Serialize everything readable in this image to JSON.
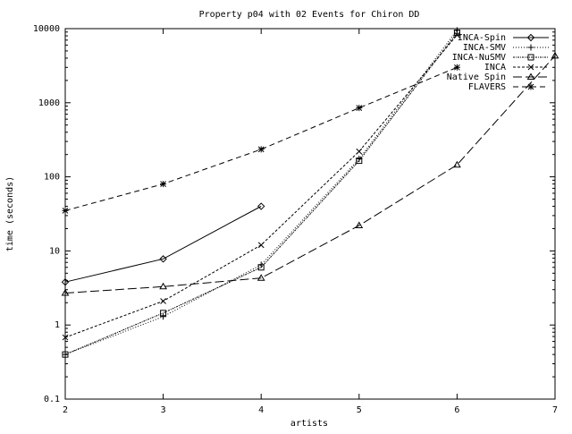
{
  "chart_data": {
    "type": "line",
    "title": "Property p04 with 02 Events for Chiron DD",
    "xlabel": "artists",
    "ylabel": "time (seconds)",
    "xlim": [
      2,
      7
    ],
    "ylim": [
      0.1,
      10000
    ],
    "yscale": "log",
    "x_ticks": [
      2,
      3,
      4,
      5,
      6,
      7
    ],
    "x_tick_labels": [
      "2",
      "3",
      "4",
      "5",
      "6",
      "7"
    ],
    "y_ticks": [
      0.1,
      1,
      10,
      100,
      1000,
      10000
    ],
    "y_tick_labels": [
      "0.1",
      "1",
      "10",
      "100",
      "1000",
      "10000"
    ],
    "grid": false,
    "legend_position": "top-right",
    "series": [
      {
        "name": "INCA-Spin",
        "dash": "solid",
        "marker": "diamond",
        "points": [
          [
            2,
            3.8
          ],
          [
            3,
            7.8
          ],
          [
            4,
            40
          ]
        ]
      },
      {
        "name": "INCA-SMV",
        "dash": "dot",
        "marker": "plus",
        "points": [
          [
            2,
            0.4
          ],
          [
            3,
            1.3
          ],
          [
            4,
            6.5
          ],
          [
            5,
            175
          ],
          [
            6,
            9500
          ]
        ]
      },
      {
        "name": "INCA-NuSMV",
        "dash": "dashdot-fine",
        "marker": "square",
        "points": [
          [
            2,
            0.4
          ],
          [
            3,
            1.45
          ],
          [
            4,
            6
          ],
          [
            5,
            165
          ],
          [
            6,
            8800
          ]
        ]
      },
      {
        "name": "INCA",
        "dash": "dash-short",
        "marker": "x",
        "points": [
          [
            2,
            0.68
          ],
          [
            3,
            2.1
          ],
          [
            4,
            12
          ],
          [
            5,
            220
          ],
          [
            6,
            8200
          ]
        ]
      },
      {
        "name": "Native Spin",
        "dash": "dash-long",
        "marker": "triangle",
        "points": [
          [
            2,
            2.7
          ],
          [
            3,
            3.3
          ],
          [
            4,
            4.3
          ],
          [
            5,
            22
          ],
          [
            6,
            145
          ],
          [
            7,
            4300
          ]
        ]
      },
      {
        "name": "FLAVERS",
        "dash": "dash-medium",
        "marker": "star",
        "points": [
          [
            2,
            35
          ],
          [
            3,
            80
          ],
          [
            4,
            235
          ],
          [
            5,
            850
          ],
          [
            6,
            3000
          ]
        ]
      }
    ]
  }
}
